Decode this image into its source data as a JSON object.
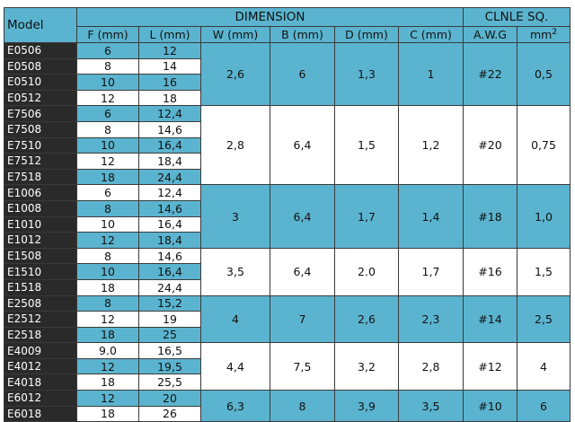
{
  "headers": {
    "model": "Model",
    "dimension": "DIMENSION",
    "cable": "CLNLE SQ.",
    "f": "F (mm)",
    "l": "L (mm)",
    "w": "W (mm)",
    "b": "B (mm)",
    "d": "D (mm)",
    "c": "C (mm)",
    "awg": "A.W.G",
    "mm": "mm",
    "mm_sup": "2"
  },
  "rows": [
    {
      "model": "E0506",
      "f": "6",
      "l": "12",
      "shade": "b"
    },
    {
      "model": "E0508",
      "f": "8",
      "l": "14",
      "shade": "w"
    },
    {
      "model": "E0510",
      "f": "10",
      "l": "16",
      "shade": "b"
    },
    {
      "model": "E0512",
      "f": "12",
      "l": "18",
      "shade": "w"
    },
    {
      "model": "E7506",
      "f": "6",
      "l": "12,4",
      "shade": "b"
    },
    {
      "model": "E7508",
      "f": "8",
      "l": "14,6",
      "shade": "w"
    },
    {
      "model": "E7510",
      "f": "10",
      "l": "16,4",
      "shade": "b"
    },
    {
      "model": "E7512",
      "f": "12",
      "l": "18,4",
      "shade": "w"
    },
    {
      "model": "E7518",
      "f": "18",
      "l": "24,4",
      "shade": "b"
    },
    {
      "model": "E1006",
      "f": "6",
      "l": "12,4",
      "shade": "w"
    },
    {
      "model": "E1008",
      "f": "8",
      "l": "14,6",
      "shade": "b"
    },
    {
      "model": "E1010",
      "f": "10",
      "l": "16,4",
      "shade": "w"
    },
    {
      "model": "E1012",
      "f": "12",
      "l": "18,4",
      "shade": "b"
    },
    {
      "model": "E1508",
      "f": "8",
      "l": "14,6",
      "shade": "w"
    },
    {
      "model": "E1510",
      "f": "10",
      "l": "16,4",
      "shade": "b"
    },
    {
      "model": "E1518",
      "f": "18",
      "l": "24,4",
      "shade": "w"
    },
    {
      "model": "E2508",
      "f": "8",
      "l": "15,2",
      "shade": "b"
    },
    {
      "model": "E2512",
      "f": "12",
      "l": "19",
      "shade": "w"
    },
    {
      "model": "E2518",
      "f": "18",
      "l": "25",
      "shade": "b"
    },
    {
      "model": "E4009",
      "f": "9.0",
      "l": "16,5",
      "shade": "w"
    },
    {
      "model": "E4012",
      "f": "12",
      "l": "19,5",
      "shade": "b"
    },
    {
      "model": "E4018",
      "f": "18",
      "l": "25,5",
      "shade": "w"
    },
    {
      "model": "E6012",
      "f": "12",
      "l": "20",
      "shade": "b"
    },
    {
      "model": "E6018",
      "f": "18",
      "l": "26",
      "shade": "w"
    }
  ],
  "groups": [
    {
      "start": 0,
      "span": 4,
      "w": "2,6",
      "b": "6",
      "d": "1,3",
      "c": "1",
      "awg": "#22",
      "mm2": "0,5",
      "shade": "b"
    },
    {
      "start": 4,
      "span": 5,
      "w": "2,8",
      "b": "6,4",
      "d": "1,5",
      "c": "1,2",
      "awg": "#20",
      "mm2": "0,75",
      "shade": "w"
    },
    {
      "start": 9,
      "span": 4,
      "w": "3",
      "b": "6,4",
      "d": "1,7",
      "c": "1,4",
      "awg": "#18",
      "mm2": "1,0",
      "shade": "b"
    },
    {
      "start": 13,
      "span": 3,
      "w": "3,5",
      "b": "6,4",
      "d": "2.0",
      "c": "1,7",
      "awg": "#16",
      "mm2": "1,5",
      "shade": "w"
    },
    {
      "start": 16,
      "span": 3,
      "w": "4",
      "b": "7",
      "d": "2,6",
      "c": "2,3",
      "awg": "#14",
      "mm2": "2,5",
      "shade": "b"
    },
    {
      "start": 19,
      "span": 3,
      "w": "4,4",
      "b": "7,5",
      "d": "3,2",
      "c": "2,8",
      "awg": "#12",
      "mm2": "4",
      "shade": "w"
    },
    {
      "start": 22,
      "span": 2,
      "w": "6,3",
      "b": "8",
      "d": "3,9",
      "c": "3,5",
      "awg": "#10",
      "mm2": "6",
      "shade": "b"
    }
  ]
}
